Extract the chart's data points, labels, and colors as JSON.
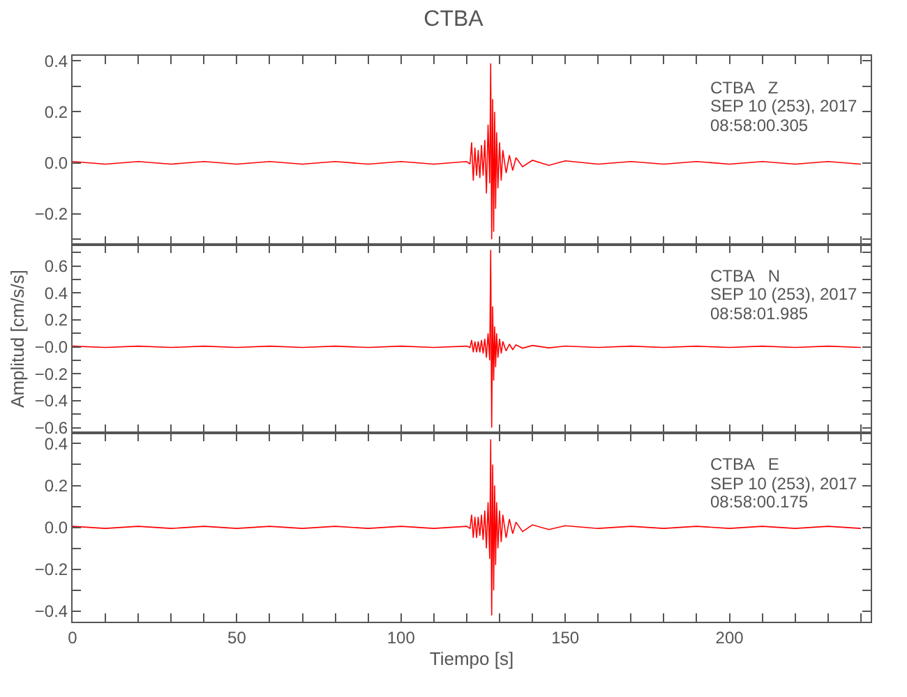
{
  "chart_data": [
    {
      "type": "line",
      "title": "CTBA",
      "annotations": [
        "CTBA   Z",
        "SEP 10 (253), 2017",
        "08:58:00.305"
      ],
      "tick_labels": "y",
      "xlim": [
        0,
        243
      ],
      "ylim": [
        -0.32,
        0.42
      ],
      "xticks": [
        {
          "value": 0,
          "label": null
        },
        {
          "value": 10,
          "label": null
        },
        {
          "value": 20,
          "label": null
        },
        {
          "value": 30,
          "label": null
        },
        {
          "value": 40,
          "label": null
        },
        {
          "value": 50,
          "label": null
        },
        {
          "value": 60,
          "label": null
        },
        {
          "value": 70,
          "label": null
        },
        {
          "value": 80,
          "label": null
        },
        {
          "value": 90,
          "label": null
        },
        {
          "value": 100,
          "label": null
        },
        {
          "value": 110,
          "label": null
        },
        {
          "value": 120,
          "label": null
        },
        {
          "value": 130,
          "label": null
        },
        {
          "value": 140,
          "label": null
        },
        {
          "value": 150,
          "label": null
        },
        {
          "value": 160,
          "label": null
        },
        {
          "value": 170,
          "label": null
        },
        {
          "value": 180,
          "label": null
        },
        {
          "value": 190,
          "label": null
        },
        {
          "value": 200,
          "label": null
        },
        {
          "value": 210,
          "label": null
        },
        {
          "value": 220,
          "label": null
        },
        {
          "value": 230,
          "label": null
        },
        {
          "value": 240,
          "label": null
        }
      ],
      "yticks": [
        {
          "value": -0.3,
          "label": null
        },
        {
          "value": -0.2,
          "label": "−0.2"
        },
        {
          "value": -0.1,
          "label": null
        },
        {
          "value": 0,
          "label": "0.0"
        },
        {
          "value": 0.1,
          "label": null
        },
        {
          "value": 0.2,
          "label": "0.2"
        },
        {
          "value": 0.3,
          "label": null
        },
        {
          "value": 0.4,
          "label": "0.4"
        }
      ],
      "series": [
        {
          "color": "#ff0000",
          "x": [
            0,
            10,
            20,
            30,
            40,
            50,
            60,
            70,
            80,
            90,
            100,
            110,
            120,
            121,
            121.5,
            122,
            122.5,
            123,
            123.5,
            124,
            124.5,
            125,
            125.5,
            126,
            126.5,
            127,
            127.3,
            127.6,
            127.9,
            128.2,
            128.5,
            128.8,
            129.1,
            129.5,
            130,
            130.5,
            131,
            132,
            133,
            134,
            135,
            137,
            140,
            145,
            150,
            160,
            170,
            180,
            190,
            200,
            210,
            220,
            230,
            240
          ],
          "values": [
            0.005,
            -0.005,
            0.005,
            -0.005,
            0.005,
            -0.005,
            0.005,
            -0.005,
            0.005,
            -0.005,
            0.005,
            -0.005,
            0.005,
            -0.005,
            0.08,
            -0.07,
            0.06,
            -0.05,
            0.05,
            -0.06,
            0.07,
            -0.05,
            0.09,
            -0.12,
            0.15,
            -0.08,
            0.39,
            -0.3,
            0.25,
            -0.27,
            0.2,
            -0.18,
            0.12,
            -0.1,
            0.08,
            -0.07,
            0.05,
            -0.04,
            0.03,
            -0.03,
            0.02,
            -0.015,
            0.01,
            -0.01,
            0.008,
            -0.005,
            0.005,
            -0.005,
            0.005,
            -0.005,
            0.005,
            -0.005,
            0.005,
            -0.005
          ]
        }
      ]
    },
    {
      "type": "line",
      "ylabel": "Amplitud [cm/s/s]",
      "annotations": [
        "CTBA   N",
        "SEP 10 (253), 2017",
        "08:58:01.985"
      ],
      "tick_labels": "y",
      "xlim": [
        0,
        243
      ],
      "ylim": [
        -0.64,
        0.76
      ],
      "xticks": [
        {
          "value": 0,
          "label": null
        },
        {
          "value": 10,
          "label": null
        },
        {
          "value": 20,
          "label": null
        },
        {
          "value": 30,
          "label": null
        },
        {
          "value": 40,
          "label": null
        },
        {
          "value": 50,
          "label": null
        },
        {
          "value": 60,
          "label": null
        },
        {
          "value": 70,
          "label": null
        },
        {
          "value": 80,
          "label": null
        },
        {
          "value": 90,
          "label": null
        },
        {
          "value": 100,
          "label": null
        },
        {
          "value": 110,
          "label": null
        },
        {
          "value": 120,
          "label": null
        },
        {
          "value": 130,
          "label": null
        },
        {
          "value": 140,
          "label": null
        },
        {
          "value": 150,
          "label": null
        },
        {
          "value": 160,
          "label": null
        },
        {
          "value": 170,
          "label": null
        },
        {
          "value": 180,
          "label": null
        },
        {
          "value": 190,
          "label": null
        },
        {
          "value": 200,
          "label": null
        },
        {
          "value": 210,
          "label": null
        },
        {
          "value": 220,
          "label": null
        },
        {
          "value": 230,
          "label": null
        },
        {
          "value": 240,
          "label": null
        }
      ],
      "yticks": [
        {
          "value": -0.6,
          "label": "−0.6"
        },
        {
          "value": -0.5,
          "label": null
        },
        {
          "value": -0.4,
          "label": "−0.4"
        },
        {
          "value": -0.3,
          "label": null
        },
        {
          "value": -0.2,
          "label": "−0.2"
        },
        {
          "value": -0.1,
          "label": null
        },
        {
          "value": 0,
          "label": "−0.0"
        },
        {
          "value": 0.1,
          "label": null
        },
        {
          "value": 0.2,
          "label": "0.2"
        },
        {
          "value": 0.3,
          "label": null
        },
        {
          "value": 0.4,
          "label": "0.4"
        },
        {
          "value": 0.5,
          "label": null
        },
        {
          "value": 0.6,
          "label": "0.6"
        },
        {
          "value": 0.7,
          "label": null
        }
      ],
      "series": [
        {
          "color": "#ff0000",
          "x": [
            0,
            10,
            20,
            30,
            40,
            50,
            60,
            70,
            80,
            90,
            100,
            110,
            120,
            121,
            121.5,
            122,
            122.5,
            123,
            123.5,
            124,
            124.5,
            125,
            125.5,
            126,
            126.5,
            127,
            127.3,
            127.6,
            127.9,
            128.2,
            128.5,
            128.8,
            129.1,
            129.5,
            130,
            130.5,
            131,
            132,
            133,
            134,
            135,
            137,
            140,
            145,
            150,
            160,
            170,
            180,
            190,
            200,
            210,
            220,
            230,
            240
          ],
          "values": [
            0.005,
            -0.005,
            0.005,
            -0.005,
            0.005,
            -0.005,
            0.005,
            -0.005,
            0.005,
            -0.005,
            0.005,
            -0.005,
            0.005,
            -0.005,
            0.05,
            -0.04,
            0.04,
            -0.04,
            0.04,
            -0.04,
            0.05,
            -0.05,
            0.06,
            -0.08,
            0.1,
            -0.1,
            0.72,
            -0.6,
            0.3,
            -0.25,
            0.15,
            -0.15,
            0.1,
            -0.08,
            0.06,
            -0.05,
            0.04,
            -0.03,
            0.02,
            -0.02,
            0.015,
            -0.01,
            0.01,
            -0.008,
            0.006,
            -0.005,
            0.005,
            -0.005,
            0.005,
            -0.005,
            0.005,
            -0.005,
            0.005,
            -0.005
          ]
        }
      ]
    },
    {
      "type": "line",
      "xlabel": "Tiempo [s]",
      "annotations": [
        "CTBA   E",
        "SEP 10 (253), 2017",
        "08:58:00.175"
      ],
      "xlim": [
        0,
        243
      ],
      "ylim": [
        -0.45,
        0.45
      ],
      "xticks": [
        0,
        {
          "value": 10,
          "label": null
        },
        {
          "value": 20,
          "label": null
        },
        {
          "value": 30,
          "label": null
        },
        {
          "value": 40,
          "label": null
        },
        50,
        {
          "value": 60,
          "label": null
        },
        {
          "value": 70,
          "label": null
        },
        {
          "value": 80,
          "label": null
        },
        {
          "value": 90,
          "label": null
        },
        100,
        {
          "value": 110,
          "label": null
        },
        {
          "value": 120,
          "label": null
        },
        {
          "value": 130,
          "label": null
        },
        {
          "value": 140,
          "label": null
        },
        150,
        {
          "value": 160,
          "label": null
        },
        {
          "value": 170,
          "label": null
        },
        {
          "value": 180,
          "label": null
        },
        {
          "value": 190,
          "label": null
        },
        200,
        {
          "value": 210,
          "label": null
        },
        {
          "value": 220,
          "label": null
        },
        {
          "value": 230,
          "label": null
        },
        {
          "value": 240,
          "label": null
        }
      ],
      "yticks": [
        {
          "value": -0.4,
          "label": "−0.4"
        },
        {
          "value": -0.3,
          "label": null
        },
        {
          "value": -0.2,
          "label": "−0.2"
        },
        {
          "value": -0.1,
          "label": null
        },
        {
          "value": 0,
          "label": "0.0"
        },
        {
          "value": 0.1,
          "label": null
        },
        {
          "value": 0.2,
          "label": "0.2"
        },
        {
          "value": 0.3,
          "label": null
        },
        {
          "value": 0.4,
          "label": "0.4"
        }
      ],
      "series": [
        {
          "color": "#ff0000",
          "x": [
            0,
            10,
            20,
            30,
            40,
            50,
            60,
            70,
            80,
            90,
            100,
            110,
            120,
            121,
            121.5,
            122,
            122.5,
            123,
            123.5,
            124,
            124.5,
            125,
            125.5,
            126,
            126.5,
            127,
            127.3,
            127.6,
            127.9,
            128.2,
            128.5,
            128.8,
            129.1,
            129.5,
            130,
            130.5,
            131,
            132,
            133,
            134,
            135,
            137,
            140,
            145,
            150,
            160,
            170,
            180,
            190,
            200,
            210,
            220,
            230,
            240
          ],
          "values": [
            0.005,
            -0.005,
            0.005,
            -0.005,
            0.005,
            -0.005,
            0.005,
            -0.005,
            0.005,
            -0.005,
            0.005,
            -0.005,
            0.005,
            -0.005,
            0.06,
            -0.05,
            0.05,
            -0.05,
            0.05,
            -0.04,
            0.06,
            -0.06,
            0.08,
            -0.1,
            0.12,
            -0.15,
            0.42,
            -0.42,
            0.3,
            -0.3,
            0.2,
            -0.18,
            0.12,
            -0.1,
            0.08,
            -0.07,
            0.06,
            -0.05,
            0.04,
            -0.03,
            0.025,
            -0.02,
            0.012,
            -0.01,
            0.008,
            -0.005,
            0.005,
            -0.005,
            0.005,
            -0.005,
            0.005,
            -0.005,
            0.005,
            -0.005
          ]
        }
      ]
    }
  ]
}
